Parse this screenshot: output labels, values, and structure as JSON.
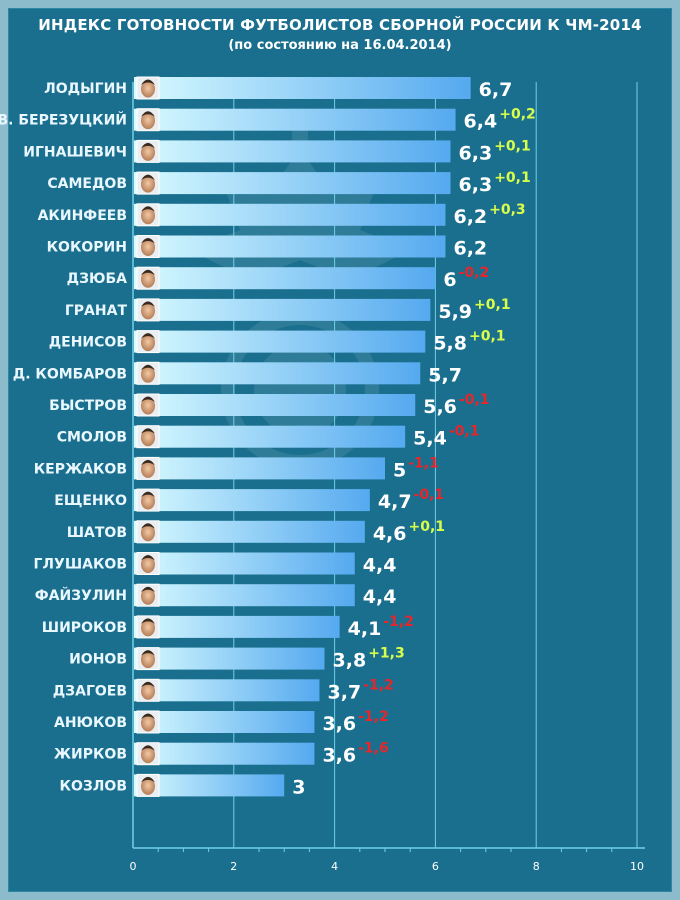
{
  "header": {
    "title": "ИНДЕКС ГОТОВНОСТИ ФУТБОЛИСТОВ СБОРНОЙ РОССИИ К ЧМ-2014",
    "subtitle": "(по состоянию на 16.04.2014)"
  },
  "colors": {
    "background": "#1a6f8e",
    "bar_start": "#d9fbff",
    "bar_end": "#55a9ef",
    "positive": "#d8ff4a",
    "negative": "#e6262a"
  },
  "chart_data": {
    "type": "bar",
    "orientation": "horizontal",
    "title": "ИНДЕКС ГОТОВНОСТИ ФУТБОЛИСТОВ СБОРНОЙ РОССИИ К ЧМ-2014",
    "subtitle": "(по состоянию на 16.04.2014)",
    "xlim": [
      0,
      10
    ],
    "x_ticks": [
      "0",
      "2",
      "4",
      "6",
      "8",
      "10"
    ],
    "grid": true,
    "categories": [
      "ЛОДЫГИН",
      "В. БЕРЕЗУЦКИЙ",
      "ИГНАШЕВИЧ",
      "САМЕДОВ",
      "АКИНФЕЕВ",
      "КОКОРИН",
      "ДЗЮБА",
      "ГРАНАТ",
      "ДЕНИСОВ",
      "Д. КОМБАРОВ",
      "БЫСТРОВ",
      "СМОЛОВ",
      "КЕРЖАКОВ",
      "ЕЩЕНКО",
      "ШАТОВ",
      "ГЛУШАКОВ",
      "ФАЙЗУЛИН",
      "ШИРОКОВ",
      "ИОНОВ",
      "ДЗАГОЕВ",
      "АНЮКОВ",
      "ЖИРКОВ",
      "КОЗЛОВ"
    ],
    "values": [
      6.7,
      6.4,
      6.3,
      6.3,
      6.2,
      6.2,
      6,
      5.9,
      5.8,
      5.7,
      5.6,
      5.4,
      5,
      4.7,
      4.6,
      4.4,
      4.4,
      4.1,
      3.8,
      3.7,
      3.6,
      3.6,
      3
    ],
    "value_labels": [
      "6,7",
      "6,4",
      "6,3",
      "6,3",
      "6,2",
      "6,2",
      "6",
      "5,9",
      "5,8",
      "5,7",
      "5,6",
      "5,4",
      "5",
      "4,7",
      "4,6",
      "4,4",
      "4,4",
      "4,1",
      "3,8",
      "3,7",
      "3,6",
      "3,6",
      "3"
    ],
    "changes": [
      "",
      "+0,2",
      "+0,1",
      "+0,1",
      "+0,3",
      "",
      "-0,2",
      "+0,1",
      "+0,1",
      "",
      "-0,1",
      "-0,1",
      "-1,1",
      "-0,1",
      "+0,1",
      "",
      "",
      "-1,2",
      "+1,3",
      "-1,2",
      "-1,2",
      "-1,6",
      ""
    ]
  }
}
